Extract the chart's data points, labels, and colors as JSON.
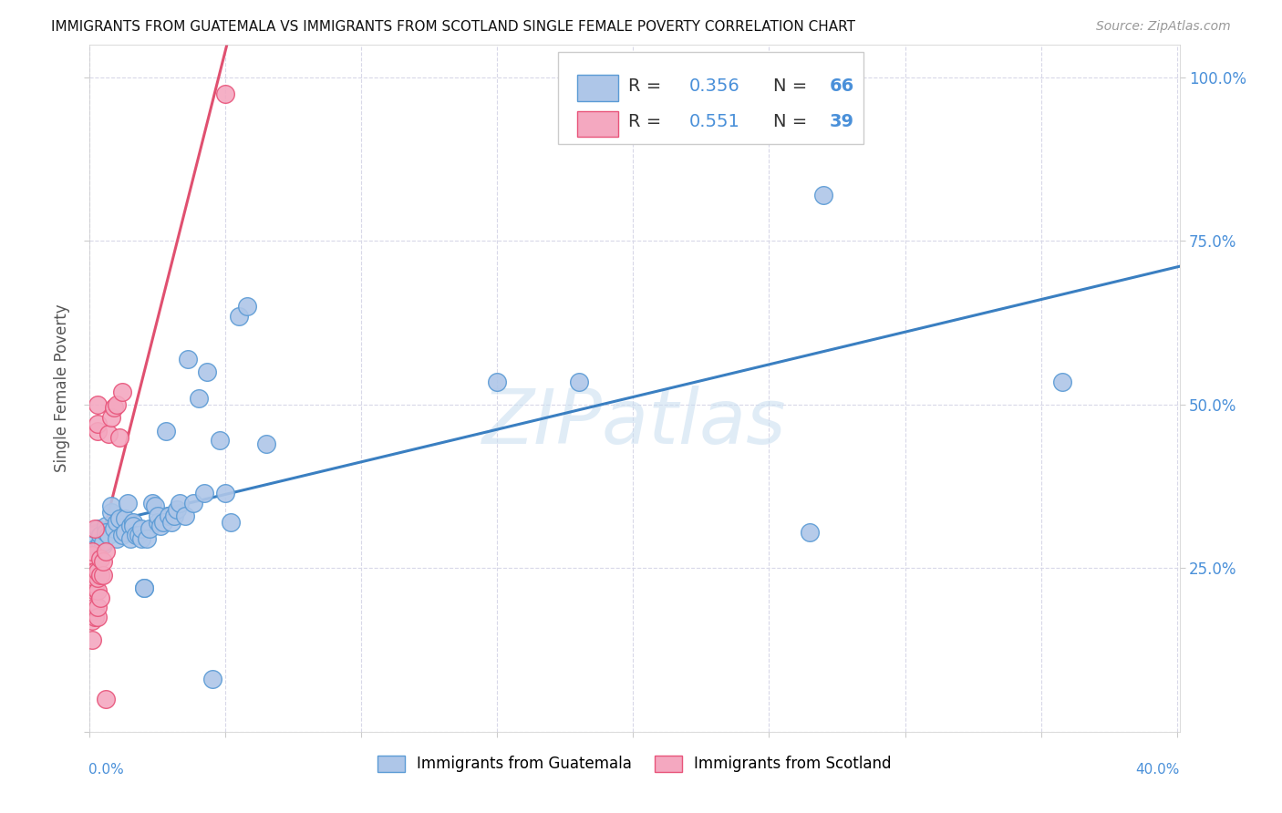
{
  "title": "IMMIGRANTS FROM GUATEMALA VS IMMIGRANTS FROM SCOTLAND SINGLE FEMALE POVERTY CORRELATION CHART",
  "source": "Source: ZipAtlas.com",
  "ylabel": "Single Female Poverty",
  "legend_bottom": [
    "Immigrants from Guatemala",
    "Immigrants from Scotland"
  ],
  "legend_top_R1": "0.356",
  "legend_top_N1": "66",
  "legend_top_R2": "0.551",
  "legend_top_N2": "39",
  "guatemala_color": "#aec6e8",
  "scotland_color": "#f4a8c0",
  "guatemala_edge_color": "#5b9bd5",
  "scotland_edge_color": "#e8547a",
  "guatemala_line_color": "#3a7fc1",
  "scotland_line_color": "#e05070",
  "guatemala_scatter": [
    [
      0.001,
      0.285
    ],
    [
      0.001,
      0.265
    ],
    [
      0.001,
      0.27
    ],
    [
      0.002,
      0.28
    ],
    [
      0.002,
      0.275
    ],
    [
      0.003,
      0.31
    ],
    [
      0.003,
      0.265
    ],
    [
      0.004,
      0.29
    ],
    [
      0.004,
      0.3
    ],
    [
      0.005,
      0.285
    ],
    [
      0.005,
      0.29
    ],
    [
      0.006,
      0.315
    ],
    [
      0.006,
      0.305
    ],
    [
      0.007,
      0.3
    ],
    [
      0.008,
      0.335
    ],
    [
      0.008,
      0.345
    ],
    [
      0.009,
      0.31
    ],
    [
      0.01,
      0.32
    ],
    [
      0.01,
      0.295
    ],
    [
      0.011,
      0.325
    ],
    [
      0.012,
      0.3
    ],
    [
      0.013,
      0.325
    ],
    [
      0.013,
      0.305
    ],
    [
      0.014,
      0.35
    ],
    [
      0.015,
      0.315
    ],
    [
      0.015,
      0.295
    ],
    [
      0.016,
      0.32
    ],
    [
      0.016,
      0.315
    ],
    [
      0.017,
      0.3
    ],
    [
      0.018,
      0.3
    ],
    [
      0.019,
      0.295
    ],
    [
      0.019,
      0.31
    ],
    [
      0.02,
      0.22
    ],
    [
      0.02,
      0.22
    ],
    [
      0.021,
      0.295
    ],
    [
      0.022,
      0.31
    ],
    [
      0.023,
      0.35
    ],
    [
      0.024,
      0.345
    ],
    [
      0.025,
      0.32
    ],
    [
      0.025,
      0.33
    ],
    [
      0.026,
      0.315
    ],
    [
      0.027,
      0.32
    ],
    [
      0.028,
      0.46
    ],
    [
      0.029,
      0.33
    ],
    [
      0.03,
      0.32
    ],
    [
      0.031,
      0.33
    ],
    [
      0.032,
      0.34
    ],
    [
      0.033,
      0.35
    ],
    [
      0.035,
      0.33
    ],
    [
      0.036,
      0.57
    ],
    [
      0.038,
      0.35
    ],
    [
      0.04,
      0.51
    ],
    [
      0.042,
      0.365
    ],
    [
      0.043,
      0.55
    ],
    [
      0.045,
      0.08
    ],
    [
      0.048,
      0.445
    ],
    [
      0.05,
      0.365
    ],
    [
      0.052,
      0.32
    ],
    [
      0.055,
      0.635
    ],
    [
      0.058,
      0.65
    ],
    [
      0.065,
      0.44
    ],
    [
      0.15,
      0.535
    ],
    [
      0.18,
      0.535
    ],
    [
      0.265,
      0.305
    ],
    [
      0.27,
      0.82
    ],
    [
      0.358,
      0.535
    ]
  ],
  "scotland_scatter": [
    [
      0.001,
      0.14
    ],
    [
      0.001,
      0.17
    ],
    [
      0.001,
      0.185
    ],
    [
      0.001,
      0.22
    ],
    [
      0.001,
      0.24
    ],
    [
      0.001,
      0.245
    ],
    [
      0.001,
      0.26
    ],
    [
      0.001,
      0.27
    ],
    [
      0.001,
      0.275
    ],
    [
      0.002,
      0.175
    ],
    [
      0.002,
      0.19
    ],
    [
      0.002,
      0.215
    ],
    [
      0.002,
      0.22
    ],
    [
      0.002,
      0.225
    ],
    [
      0.002,
      0.235
    ],
    [
      0.002,
      0.245
    ],
    [
      0.002,
      0.31
    ],
    [
      0.003,
      0.175
    ],
    [
      0.003,
      0.19
    ],
    [
      0.003,
      0.215
    ],
    [
      0.003,
      0.235
    ],
    [
      0.003,
      0.245
    ],
    [
      0.003,
      0.46
    ],
    [
      0.003,
      0.47
    ],
    [
      0.003,
      0.5
    ],
    [
      0.004,
      0.205
    ],
    [
      0.004,
      0.24
    ],
    [
      0.004,
      0.265
    ],
    [
      0.005,
      0.24
    ],
    [
      0.005,
      0.26
    ],
    [
      0.006,
      0.275
    ],
    [
      0.006,
      0.05
    ],
    [
      0.007,
      0.455
    ],
    [
      0.008,
      0.48
    ],
    [
      0.009,
      0.495
    ],
    [
      0.01,
      0.5
    ],
    [
      0.011,
      0.45
    ],
    [
      0.012,
      0.52
    ],
    [
      0.05,
      0.975
    ]
  ],
  "xlim": [
    0.0,
    0.401
  ],
  "ylim": [
    0.0,
    1.05
  ],
  "xtick_vals": [
    0.0,
    0.05,
    0.1,
    0.15,
    0.2,
    0.25,
    0.3,
    0.35,
    0.4
  ],
  "ytick_vals": [
    0.0,
    0.25,
    0.5,
    0.75,
    1.0
  ],
  "right_ytick_labels": [
    "25.0%",
    "50.0%",
    "75.0%",
    "100.0%"
  ],
  "background_color": "#ffffff",
  "grid_color": "#d8d8e8",
  "watermark": "ZIPatlas",
  "figsize": [
    14.06,
    8.92
  ],
  "dpi": 100
}
